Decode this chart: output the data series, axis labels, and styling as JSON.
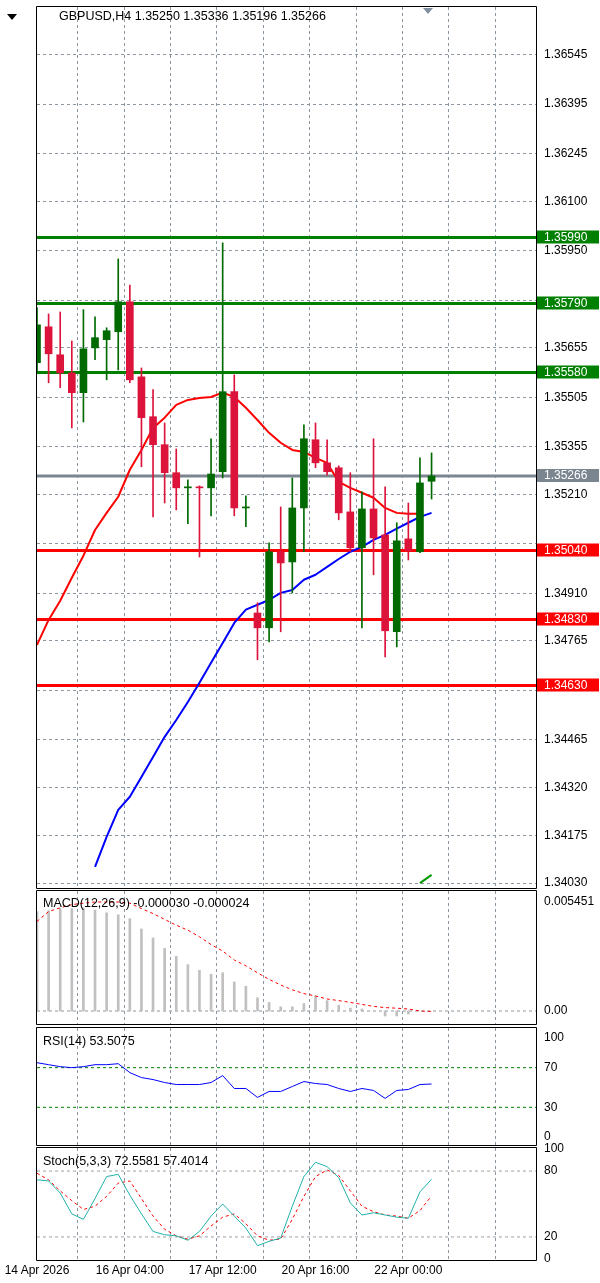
{
  "chart_data": [
    {
      "type": "candlestick",
      "title": "GBPUSD,H4 1.35250 1.35336 1.35196 1.35266",
      "categories": [
        null,
        null,
        null,
        null,
        null,
        null,
        null,
        null,
        null,
        null,
        null,
        null,
        null,
        null,
        null,
        null,
        null,
        null,
        null,
        null,
        null,
        null,
        null,
        null,
        null,
        null,
        null,
        null,
        null,
        null,
        null,
        null,
        null,
        null,
        null,
        null,
        null,
        null,
        null,
        null,
        null,
        null,
        null,
        null
      ],
      "ohlc": [
        [
          1.3561,
          1.35777,
          1.35579,
          1.35725
        ],
        [
          1.35719,
          1.35758,
          1.35549,
          1.35637
        ],
        [
          1.35634,
          1.35764,
          1.35534,
          1.35579
        ],
        [
          1.35579,
          1.35676,
          1.35412,
          1.35519
        ],
        [
          1.35519,
          1.35771,
          1.3543,
          1.35652
        ],
        [
          1.35655,
          1.35749,
          1.35619,
          1.35686
        ],
        [
          1.3568,
          1.35716,
          1.35558,
          1.35707
        ],
        [
          1.35704,
          1.35925,
          1.35588,
          1.35795
        ],
        [
          1.35795,
          1.35846,
          1.35549,
          1.35558
        ],
        [
          1.35567,
          1.35594,
          1.35294,
          1.35443
        ],
        [
          1.35446,
          1.35528,
          1.35142,
          1.35361
        ],
        [
          1.35361,
          1.35427,
          1.35184,
          1.35276
        ],
        [
          1.35276,
          1.35348,
          1.35163,
          1.3523
        ],
        [
          1.3523,
          1.35254,
          1.35121,
          1.35233
        ],
        [
          1.35233,
          1.35236,
          1.3502,
          1.3523
        ],
        [
          1.3523,
          1.35379,
          1.35145,
          1.35272
        ],
        [
          1.35279,
          1.35974,
          1.3526,
          1.35522
        ],
        [
          1.35522,
          1.35573,
          1.35145,
          1.35169
        ],
        [
          1.35169,
          1.35206,
          1.35112,
          1.35172
        ],
        [
          1.3485,
          1.34881,
          1.34708,
          1.34805
        ],
        [
          1.34805,
          1.35063,
          1.34762,
          1.35036
        ],
        [
          1.35036,
          1.35172,
          1.34793,
          1.35002
        ],
        [
          1.35005,
          1.3526,
          1.34911,
          1.35169
        ],
        [
          1.35169,
          1.35421,
          1.35036,
          1.35379
        ],
        [
          1.35376,
          1.35427,
          1.35291,
          1.35306
        ],
        [
          1.35306,
          1.35376,
          1.35269,
          1.35279
        ],
        [
          1.35291,
          1.35297,
          1.35133,
          1.35154
        ],
        [
          1.35157,
          1.35276,
          1.35036,
          1.35048
        ],
        [
          1.35048,
          1.35218,
          1.34805,
          1.35166
        ],
        [
          1.35166,
          1.35379,
          1.34966,
          1.35078
        ],
        [
          1.35087,
          1.35233,
          1.34717,
          1.34796
        ],
        [
          1.34793,
          1.35124,
          1.34747,
          1.35069
        ],
        [
          1.35075,
          1.35184,
          1.35011,
          1.35039
        ],
        [
          1.35036,
          1.35321,
          1.35033,
          1.35245
        ],
        [
          1.3525,
          1.35336,
          1.35196,
          1.35266
        ],
        null,
        null,
        null,
        null,
        null,
        null,
        null,
        null,
        null
      ],
      "colors": [
        "#006a00",
        "#dc143c",
        "#dc143c",
        "#dc143c",
        "#006a00",
        "#006a00",
        "#006a00",
        "#006a00",
        "#dc143c",
        "#dc143c",
        "#dc143c",
        "#dc143c",
        "#dc143c",
        "#006a00",
        "#dc143c",
        "#006a00",
        "#006a00",
        "#dc143c",
        "#006a00",
        "#dc143c",
        "#006a00",
        "#dc143c",
        "#006a00",
        "#006a00",
        "#dc143c",
        "#dc143c",
        "#dc143c",
        "#dc143c",
        "#006a00",
        "#dc143c",
        "#dc143c",
        "#006a00",
        "#dc143c",
        "#006a00",
        "#006a00",
        null,
        null,
        null,
        null,
        null,
        null,
        null,
        null,
        null
      ],
      "series": [
        {
          "type": "line",
          "color": "#ff0000",
          "values": [
            1.34753,
            1.34829,
            1.34887,
            1.34957,
            1.35024,
            1.35102,
            1.35154,
            1.35203,
            1.35285,
            1.35345,
            1.35412,
            1.35443,
            1.35482,
            1.35497,
            1.35503,
            1.35506,
            1.35519,
            1.35506,
            1.35473,
            1.35436,
            1.35397,
            1.35367,
            1.35345,
            1.35339,
            1.35321,
            1.35306,
            1.35248,
            1.3523,
            1.35215,
            1.352,
            1.35169,
            1.35154,
            1.35151,
            1.35151,
            null,
            null,
            null,
            null,
            null,
            null,
            null,
            null,
            null,
            null
          ]
        },
        {
          "type": "line",
          "color": "#0000ff",
          "values": [
            null,
            null,
            null,
            null,
            null,
            1.34079,
            1.3417,
            1.34252,
            1.34292,
            1.34352,
            1.34413,
            1.34474,
            1.34525,
            1.3458,
            1.34638,
            1.34699,
            1.34759,
            1.3482,
            1.3486,
            1.34875,
            1.3489,
            1.34911,
            1.3492,
            1.34951,
            1.34966,
            1.3499,
            1.35014,
            1.35036,
            1.35051,
            1.35072,
            1.35087,
            1.35106,
            1.35124,
            1.35142,
            1.35154,
            null,
            null,
            null,
            null,
            null,
            null,
            null,
            null,
            null
          ]
        },
        {
          "type": "line",
          "color": "#009900",
          "values": [
            null,
            null,
            null,
            null,
            null,
            null,
            null,
            null,
            null,
            null,
            null,
            null,
            null,
            null,
            null,
            null,
            null,
            null,
            null,
            null,
            null,
            null,
            null,
            null,
            null,
            null,
            null,
            null,
            null,
            null,
            null,
            null,
            null,
            1.3403,
            1.34055,
            null,
            null,
            null,
            null,
            null,
            null,
            null,
            null,
            null
          ]
        }
      ],
      "ylim": [
        1.34015,
        1.3669
      ],
      "yticks": [
        1.36545,
        1.36395,
        1.36245,
        {
          "value": 1.361,
          "label": "1.36100"
        },
        {
          "value": 1.3595,
          "label": "1.35950"
        },
        {
          "value": 1.358,
          "label": null
        },
        1.35655,
        1.35505,
        1.35355,
        {
          "value": 1.3521,
          "label": "1.35210"
        },
        {
          "value": 1.3506,
          "label": null
        },
        {
          "value": 1.3491,
          "label": "1.34910"
        },
        1.34765,
        {
          "value": 1.34615,
          "label": null
        },
        1.34465,
        {
          "value": 1.3432,
          "label": "1.34320"
        },
        1.34175,
        {
          "value": 1.3403,
          "label": "1.34030"
        }
      ],
      "ref_lines": [
        {
          "axis": "y",
          "value": 1.3599,
          "label": "1.35990",
          "color": "#008000",
          "line_style": "solid"
        },
        {
          "axis": "y",
          "value": 1.3579,
          "label": "1.35790",
          "color": "#008000",
          "line_style": "solid"
        },
        {
          "axis": "y",
          "value": 1.3558,
          "label": "1.35580",
          "color": "#008000",
          "line_style": "solid"
        },
        {
          "axis": "y",
          "value": 1.35266,
          "label": "1.35266",
          "color": "#7a8590",
          "line_style": "solid"
        },
        {
          "axis": "y",
          "value": 1.3504,
          "label": "1.35040",
          "color": "#ff0000",
          "line_style": "solid"
        },
        {
          "axis": "y",
          "value": 1.3483,
          "label": "1.34830",
          "color": "#ff0000",
          "line_style": "solid"
        },
        {
          "axis": "y",
          "value": 1.3463,
          "label": "1.34630",
          "color": "#ff0000",
          "line_style": "solid"
        }
      ],
      "grid": true,
      "tick_labels": "y",
      "marker": "none"
    },
    {
      "type": "bar",
      "title": "MACD(12,26,9) -0.000030 -0.000024",
      "categories": [
        null,
        null,
        null,
        null,
        null,
        null,
        null,
        null,
        null,
        null,
        null,
        null,
        null,
        null,
        null,
        null,
        null,
        null,
        null,
        null,
        null,
        null,
        null,
        null,
        null,
        null,
        null,
        null,
        null,
        null,
        null,
        null,
        null,
        null,
        null,
        null,
        null,
        null,
        null,
        null,
        null,
        null,
        null,
        null
      ],
      "series": [
        {
          "type": "bar",
          "color": "#c0c0c0",
          "values": [
            0.00497,
            0.00501,
            0.00512,
            0.00512,
            0.00516,
            0.00505,
            0.00491,
            0.00481,
            0.00462,
            0.0041,
            0.00365,
            0.00313,
            0.00274,
            0.00232,
            0.00203,
            0.00184,
            0.00191,
            0.00145,
            0.00124,
            0.00066,
            0.00043,
            0.00021,
            0.00021,
            0.00037,
            0.00075,
            0.00052,
            0.00029,
            0.00014,
            0.0001,
            null,
            -0.00025,
            -0.00025,
            -0.00015,
            null,
            null,
            null,
            null,
            null,
            null,
            null,
            null,
            null,
            null,
            null
          ]
        },
        {
          "type": "line",
          "color": "#ff0000",
          "line_style": "dashed",
          "values": [
            0.00448,
            0.00497,
            0.00516,
            0.00532,
            0.00539,
            0.00545,
            0.00545,
            0.00545,
            0.00539,
            0.00512,
            0.00487,
            0.00458,
            0.00429,
            0.00404,
            0.00371,
            0.00332,
            0.003,
            0.00255,
            0.00226,
            0.00191,
            0.00158,
            0.0013,
            0.00106,
            0.00087,
            0.00075,
            0.0006,
            0.00052,
            0.00043,
            0.00033,
            0.00023,
            0.00017,
            0.00014,
            0.0001,
            0,
            -2.4e-05,
            null,
            null,
            null,
            null,
            null,
            null,
            null,
            null,
            null
          ]
        }
      ],
      "ylim": [
        -0.00065,
        0.006
      ],
      "yticks": [
        0.005451,
        {
          "value": 0,
          "label": "0.00"
        }
      ],
      "ref_lines": [
        {
          "axis": "y",
          "value": 0,
          "color": "#8c96a0",
          "line_style": "dashed"
        }
      ],
      "grid": "x",
      "tick_labels": "y",
      "marker": "none"
    },
    {
      "type": "line",
      "title": "RSI(14) 53.5075",
      "categories": [
        null,
        null,
        null,
        null,
        null,
        null,
        null,
        null,
        null,
        null,
        null,
        null,
        null,
        null,
        null,
        null,
        null,
        null,
        null,
        null,
        null,
        null,
        null,
        null,
        null,
        null,
        null,
        null,
        null,
        null,
        null,
        null,
        null,
        null,
        null,
        null,
        null,
        null,
        null,
        null,
        null,
        null,
        null,
        null
      ],
      "series": [
        {
          "color": "#0000ff",
          "values": [
            75,
            73,
            71,
            70,
            71,
            73,
            73,
            74,
            65,
            60,
            58,
            55,
            53,
            53,
            53,
            55,
            62,
            49,
            49,
            40,
            46,
            46,
            51,
            56,
            54,
            53,
            49,
            46,
            49,
            47,
            39,
            47,
            48,
            53,
            53.5075,
            null,
            null,
            null,
            null,
            null,
            null,
            null,
            null,
            null
          ]
        }
      ],
      "ylim": [
        -8,
        110
      ],
      "yticks": [
        100,
        70,
        30,
        0
      ],
      "ref_lines": [
        {
          "axis": "y",
          "value": 70,
          "color": "#008000",
          "line_style": "dashed"
        },
        {
          "axis": "y",
          "value": 30,
          "color": "#008000",
          "line_style": "dashed"
        }
      ],
      "grid": "x",
      "tick_labels": "y",
      "marker": "none"
    },
    {
      "type": "line",
      "title": "Stoch(5,3,3) 72.5581 57.4014",
      "categories": [
        "14 Apr 2026",
        null,
        null,
        null,
        null,
        null,
        null,
        null,
        "16 Apr 04:00",
        null,
        null,
        null,
        null,
        null,
        null,
        null,
        "17 Apr 12:00",
        null,
        null,
        null,
        null,
        null,
        null,
        null,
        "20 Apr 16:00",
        null,
        null,
        null,
        null,
        null,
        null,
        null,
        "22 Apr 00:00",
        null,
        null,
        null,
        null,
        null,
        null,
        null,
        null,
        null,
        null,
        null
      ],
      "series": [
        {
          "color": "#20b2aa",
          "values": [
            72,
            71,
            60,
            41,
            36,
            55,
            75,
            77,
            58,
            41,
            25,
            22,
            21,
            17,
            25,
            39,
            50,
            39,
            28,
            12,
            16,
            19,
            48,
            75,
            88,
            84,
            74,
            51,
            40,
            42,
            40,
            38,
            37,
            61,
            72.5581,
            null,
            null,
            null,
            null,
            null,
            null,
            null,
            null,
            null
          ]
        },
        {
          "color": "#ff0000",
          "line_style": "dashed",
          "values": [
            78,
            72,
            62,
            53,
            45,
            48,
            57,
            69,
            71,
            55,
            39,
            27,
            21,
            18,
            21,
            30,
            38,
            41,
            32,
            21,
            17,
            18,
            36,
            57,
            75,
            81,
            76,
            62,
            48,
            43,
            40,
            39,
            37,
            44,
            57.4014,
            null,
            null,
            null,
            null,
            null,
            null,
            null,
            null,
            null
          ]
        }
      ],
      "ylim": [
        -1,
        101
      ],
      "yticks": [
        100,
        80,
        20,
        0
      ],
      "ref_lines": [
        {
          "axis": "y",
          "value": 80,
          "color": "#a0a0a0",
          "line_style": "dashed"
        },
        {
          "axis": "y",
          "value": 20,
          "color": "#a0a0a0",
          "line_style": "dashed"
        }
      ],
      "grid": "x",
      "marker": "none"
    }
  ]
}
